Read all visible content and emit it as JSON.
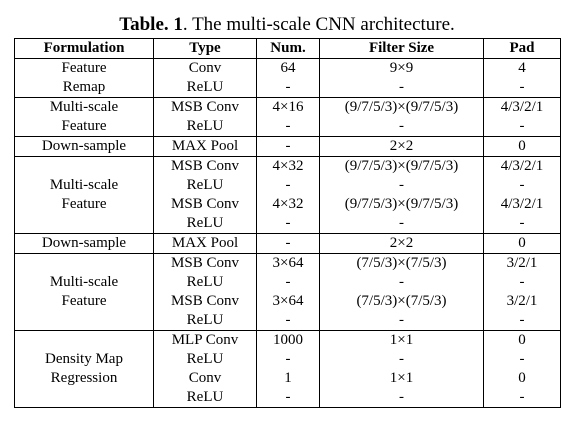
{
  "caption": {
    "label": "Table. 1",
    "text": ". The multi-scale CNN architecture."
  },
  "columns": [
    "Formulation",
    "Type",
    "Num.",
    "Filter Size",
    "Pad"
  ],
  "groups": [
    {
      "formulation": [
        "Feature",
        "Remap"
      ],
      "rows": [
        {
          "type": "Conv",
          "num": "64",
          "filter": "9×9",
          "pad": "4"
        },
        {
          "type": "ReLU",
          "num": "-",
          "filter": "-",
          "pad": "-"
        }
      ]
    },
    {
      "formulation": [
        "Multi-scale",
        "Feature"
      ],
      "rows": [
        {
          "type": "MSB Conv",
          "num": "4×16",
          "filter": "(9/7/5/3)×(9/7/5/3)",
          "pad": "4/3/2/1"
        },
        {
          "type": "ReLU",
          "num": "-",
          "filter": "-",
          "pad": "-"
        }
      ]
    },
    {
      "formulation": [
        "Down-sample"
      ],
      "rows": [
        {
          "type": "MAX Pool",
          "num": "-",
          "filter": "2×2",
          "pad": "0"
        }
      ]
    },
    {
      "formulation": [
        "Multi-scale",
        "Feature"
      ],
      "rows": [
        {
          "type": "MSB Conv",
          "num": "4×32",
          "filter": "(9/7/5/3)×(9/7/5/3)",
          "pad": "4/3/2/1"
        },
        {
          "type": "ReLU",
          "num": "-",
          "filter": "-",
          "pad": "-"
        },
        {
          "type": "MSB Conv",
          "num": "4×32",
          "filter": "(9/7/5/3)×(9/7/5/3)",
          "pad": "4/3/2/1"
        },
        {
          "type": "ReLU",
          "num": "-",
          "filter": "-",
          "pad": "-"
        }
      ]
    },
    {
      "formulation": [
        "Down-sample"
      ],
      "rows": [
        {
          "type": "MAX Pool",
          "num": "-",
          "filter": "2×2",
          "pad": "0"
        }
      ]
    },
    {
      "formulation": [
        "Multi-scale",
        "Feature"
      ],
      "rows": [
        {
          "type": "MSB Conv",
          "num": "3×64",
          "filter": "(7/5/3)×(7/5/3)",
          "pad": "3/2/1"
        },
        {
          "type": "ReLU",
          "num": "-",
          "filter": "-",
          "pad": "-"
        },
        {
          "type": "MSB Conv",
          "num": "3×64",
          "filter": "(7/5/3)×(7/5/3)",
          "pad": "3/2/1"
        },
        {
          "type": "ReLU",
          "num": "-",
          "filter": "-",
          "pad": "-"
        }
      ]
    },
    {
      "formulation": [
        "Density Map",
        "Regression"
      ],
      "rows": [
        {
          "type": "MLP Conv",
          "num": "1000",
          "filter": "1×1",
          "pad": "0"
        },
        {
          "type": "ReLU",
          "num": "-",
          "filter": "-",
          "pad": "-"
        },
        {
          "type": "Conv",
          "num": "1",
          "filter": "1×1",
          "pad": "0"
        },
        {
          "type": "ReLU",
          "num": "-",
          "filter": "-",
          "pad": "-"
        }
      ]
    }
  ]
}
